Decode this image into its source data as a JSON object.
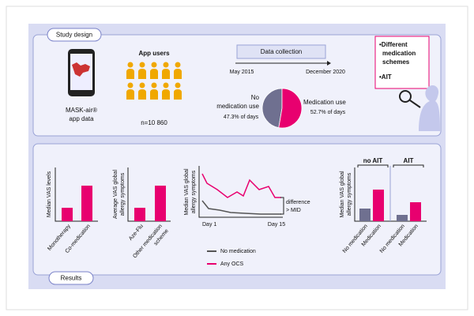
{
  "study_design": {
    "title": "Study design",
    "app": [
      "MASK-air®",
      "app data"
    ],
    "users_title": "App users",
    "users_count": "n=10 860",
    "data_collection": {
      "title": "Data collection",
      "start": "May 2015",
      "end": "December 2020"
    },
    "pie": {
      "slices": [
        {
          "label": [
            "No",
            "medication use"
          ],
          "value": 47.3,
          "value_label": "47.3% of days",
          "color": "#6f7090"
        },
        {
          "label": [
            "Medication use"
          ],
          "value": 52.7,
          "value_label": "52.7% of days",
          "color": "#e8006f"
        }
      ]
    },
    "focus": [
      [
        "•Different",
        "medication",
        "schemes"
      ],
      [
        "•AIT"
      ]
    ]
  },
  "results": {
    "title": "Results",
    "chart1": {
      "ylabel": "Median VAS levels",
      "categories": [
        "Monotherapy",
        "Co-medication"
      ]
    },
    "chart2": {
      "ylabel": [
        "Average VAS global",
        "allergy symptoms"
      ],
      "categories": [
        [
          "Aze-Flu"
        ],
        [
          "Other medication",
          "scheme"
        ]
      ]
    },
    "chart3": {
      "ylabel": [
        "Median VAS global",
        "allergy symptoms"
      ],
      "x_start": "Day 1",
      "x_end": "Day 15",
      "annotation": [
        "difference",
        "> MID"
      ],
      "legend": [
        "No medication",
        "Any OCS"
      ]
    },
    "chart4": {
      "ylabel": [
        "Median VAS global",
        "allergy symptoms"
      ],
      "panels": [
        "no AIT",
        "AIT"
      ],
      "categories": [
        "No medication",
        "Medication",
        "No medication",
        "Medication"
      ]
    }
  }
}
